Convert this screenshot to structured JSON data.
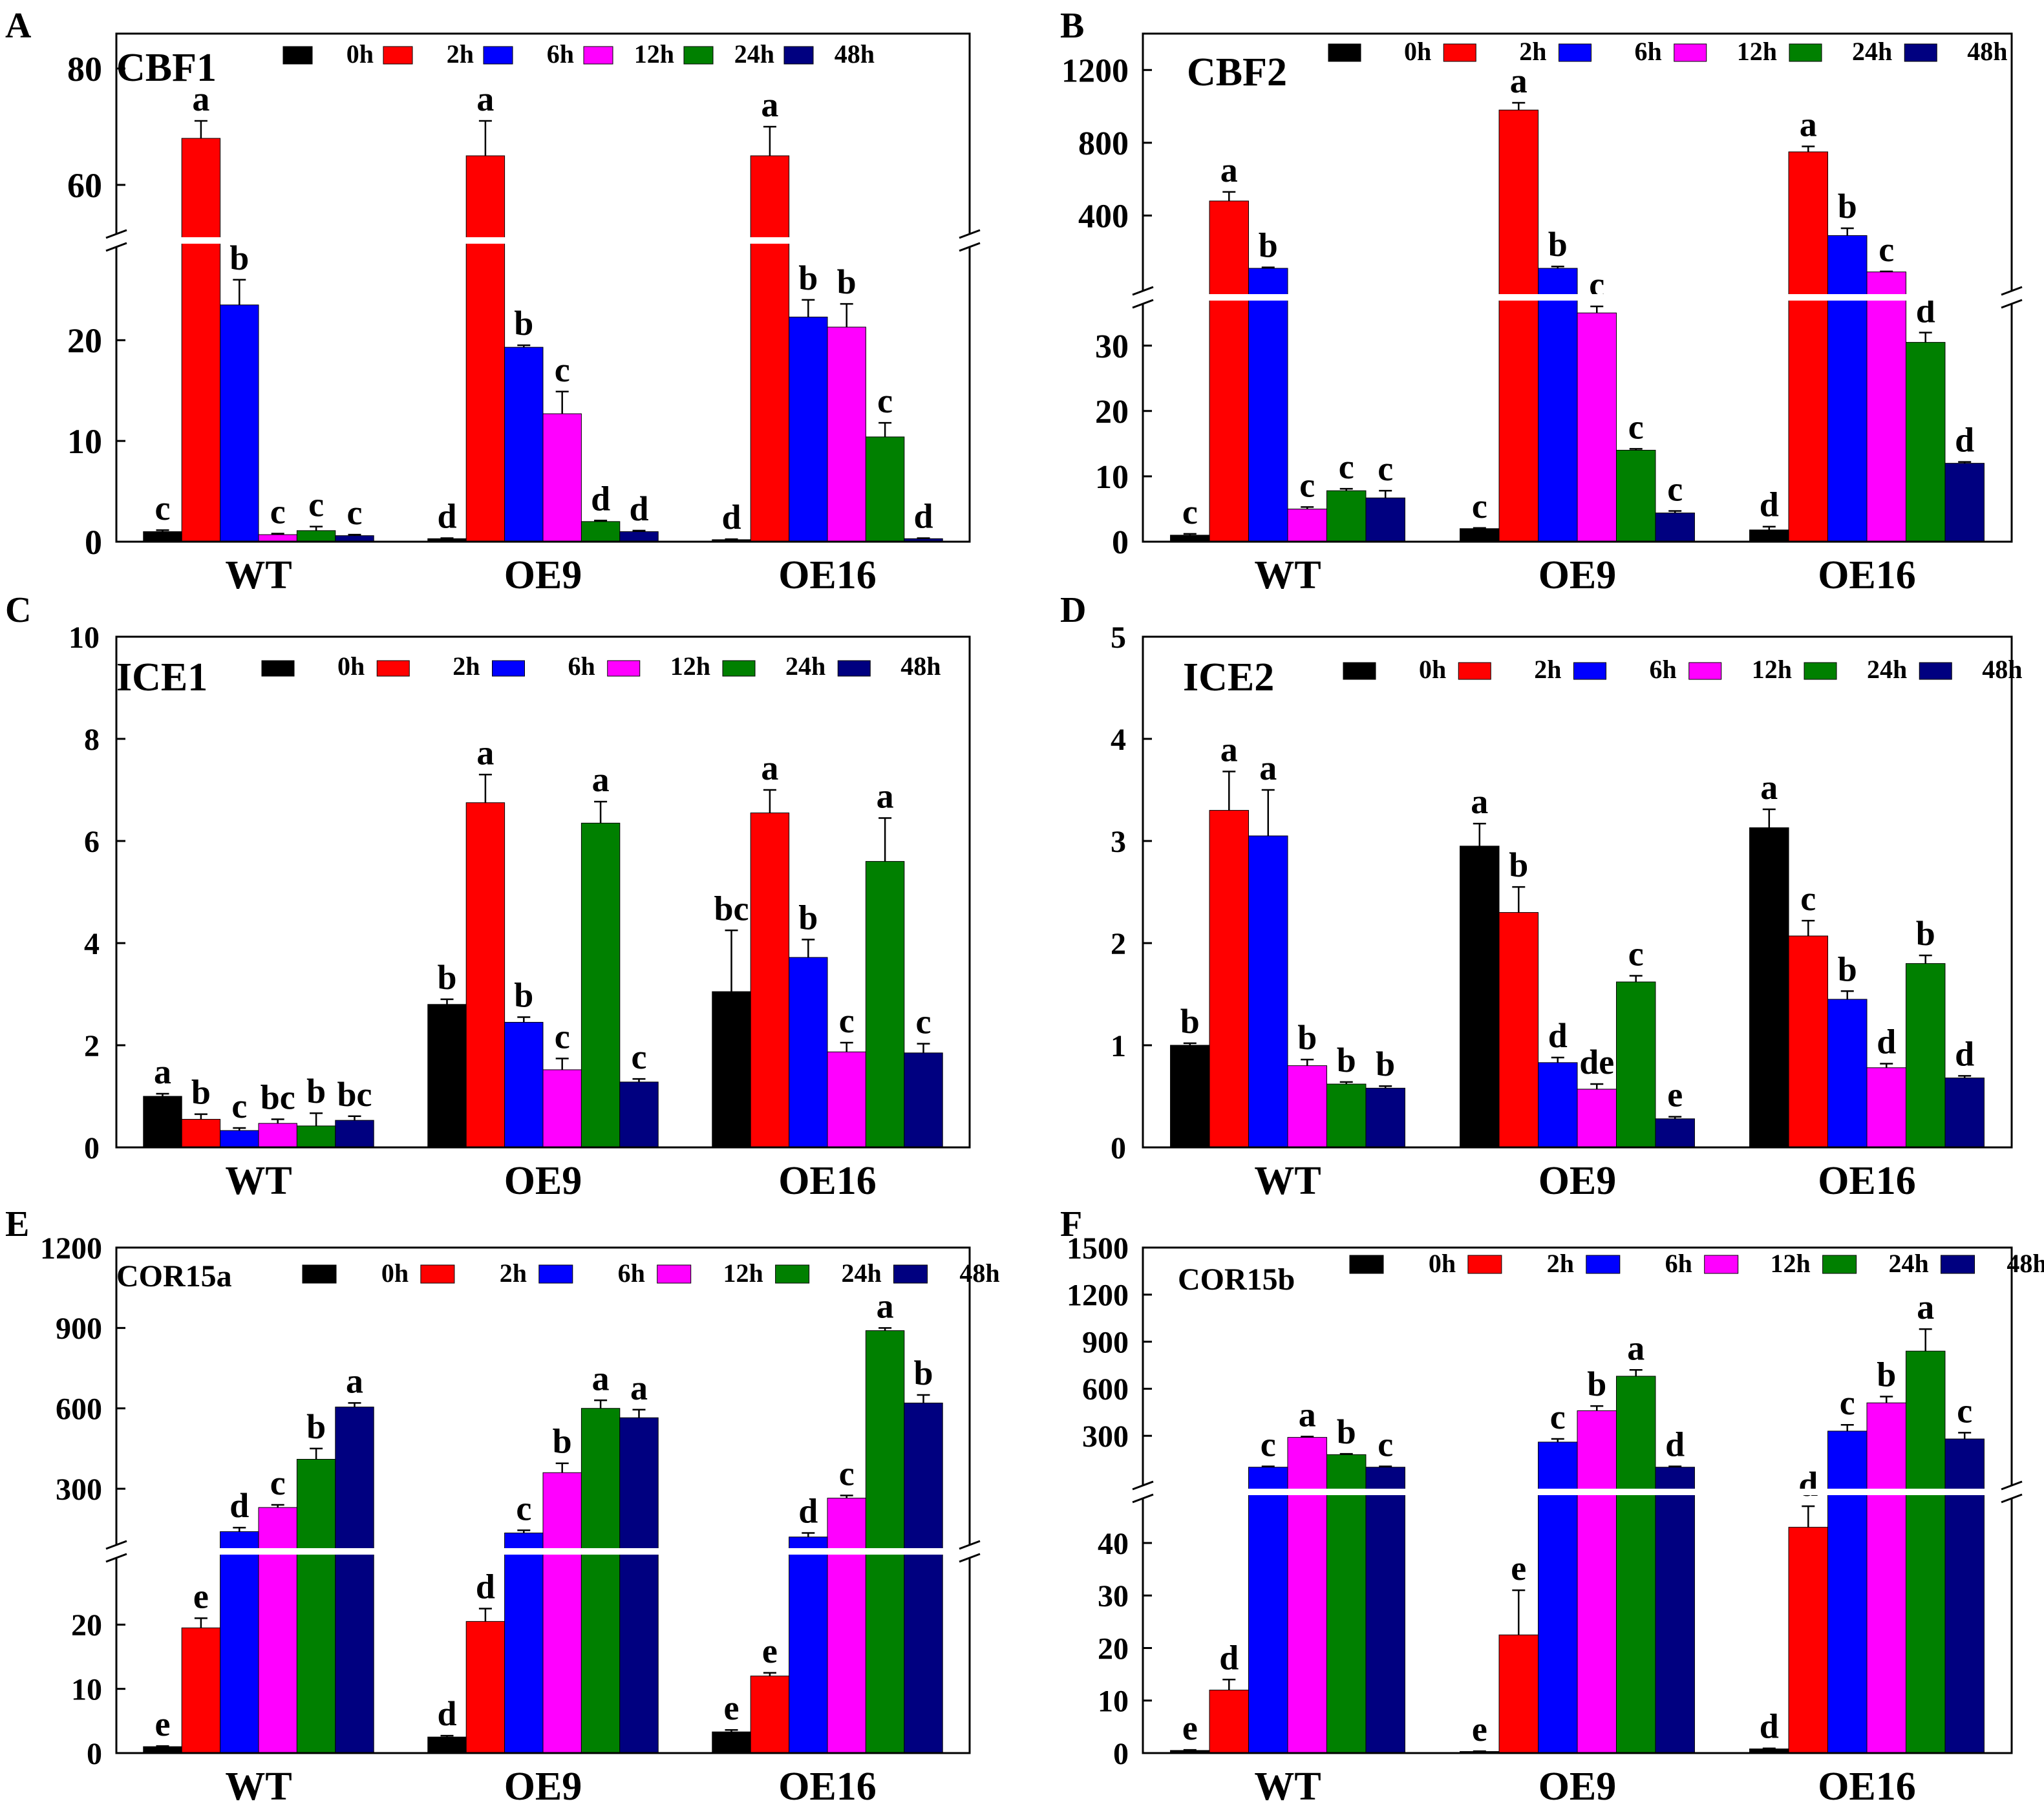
{
  "legend": {
    "times": [
      "0h",
      "2h",
      "6h",
      "12h",
      "24h",
      "48h"
    ],
    "colors": [
      "#000000",
      "#ff0000",
      "#0000ff",
      "#ff00ff",
      "#008000",
      "#000080"
    ]
  },
  "groups": [
    "WT",
    "OE9",
    "OE16"
  ],
  "chart_data": [
    {
      "panel": "A",
      "type": "bar",
      "title": "CBF1",
      "categories": [
        "WT",
        "OE9",
        "OE16"
      ],
      "series_names": [
        "0h",
        "2h",
        "6h",
        "12h",
        "24h",
        "48h"
      ],
      "axis_break": true,
      "lower_range": [
        0,
        29
      ],
      "lower_ticks": [
        0,
        10,
        20
      ],
      "upper_range": [
        52,
        86
      ],
      "upper_ticks": [
        60,
        80
      ],
      "values": [
        [
          1,
          68,
          23.5,
          0.7,
          1.1,
          0.6
        ],
        [
          0.3,
          65,
          19.3,
          12.7,
          2,
          1
        ],
        [
          0.2,
          65,
          22.3,
          21.3,
          10.4,
          0.3
        ]
      ],
      "errors": [
        [
          0.15,
          3,
          2.5,
          0.1,
          0.4,
          0.1
        ],
        [
          0.05,
          6,
          0.2,
          2.2,
          0.1,
          0.1
        ],
        [
          0.05,
          5,
          1.7,
          2.3,
          1.4,
          0.05
        ]
      ],
      "letters": [
        [
          "c",
          "a",
          "b",
          "c",
          "c",
          "c"
        ],
        [
          "d",
          "a",
          "b",
          "c",
          "d",
          "d"
        ],
        [
          "d",
          "a",
          "b",
          "b",
          "c",
          "d"
        ]
      ]
    },
    {
      "panel": "B",
      "type": "bar",
      "title": "CBF2",
      "categories": [
        "WT",
        "OE9",
        "OE16"
      ],
      "series_names": [
        "0h",
        "2h",
        "6h",
        "12h",
        "24h",
        "48h"
      ],
      "axis_break": true,
      "lower_range": [
        0,
        36
      ],
      "lower_ticks": [
        0,
        10,
        20,
        30
      ],
      "upper_range": [
        0,
        1400
      ],
      "upper_ticks": [
        400,
        800,
        1200
      ],
      "values": [
        [
          1,
          480,
          110,
          5,
          7.8,
          6.7
        ],
        [
          2,
          980,
          110,
          35,
          14,
          4.4
        ],
        [
          1.8,
          750,
          290,
          90,
          30.5,
          12
        ]
      ],
      "errors": [
        [
          0.2,
          50,
          5,
          0.3,
          0.3,
          1.1
        ],
        [
          0.1,
          40,
          10,
          1,
          0.2,
          0.3
        ],
        [
          0.5,
          30,
          40,
          3,
          1.5,
          0.2
        ]
      ],
      "letters": [
        [
          "c",
          "a",
          "b",
          "c",
          "c",
          "c"
        ],
        [
          "c",
          "a",
          "b",
          "c",
          "c",
          "c"
        ],
        [
          "d",
          "a",
          "b",
          "c",
          "d",
          "d"
        ]
      ]
    },
    {
      "panel": "C",
      "type": "bar",
      "title": "ICE1",
      "categories": [
        "WT",
        "OE9",
        "OE16"
      ],
      "series_names": [
        "0h",
        "2h",
        "6h",
        "12h",
        "24h",
        "48h"
      ],
      "axis_break": false,
      "ylim": [
        0,
        10
      ],
      "ticks": [
        0,
        2,
        4,
        6,
        8,
        10
      ],
      "values": [
        [
          1,
          0.55,
          0.33,
          0.47,
          0.42,
          0.53
        ],
        [
          2.8,
          6.75,
          2.45,
          1.52,
          6.35,
          1.28
        ],
        [
          3.05,
          6.55,
          3.72,
          1.87,
          5.6,
          1.85
        ]
      ],
      "errors": [
        [
          0.05,
          0.1,
          0.05,
          0.08,
          0.25,
          0.08
        ],
        [
          0.1,
          0.55,
          0.1,
          0.22,
          0.42,
          0.06
        ],
        [
          1.2,
          0.45,
          0.35,
          0.18,
          0.85,
          0.18
        ]
      ],
      "letters": [
        [
          "a",
          "b",
          "c",
          "bc",
          "b",
          "bc"
        ],
        [
          "b",
          "a",
          "b",
          "c",
          "a",
          "c"
        ],
        [
          "bc",
          "a",
          "b",
          "c",
          "a",
          "c"
        ]
      ]
    },
    {
      "panel": "D",
      "type": "bar",
      "title": "ICE2",
      "categories": [
        "WT",
        "OE9",
        "OE16"
      ],
      "series_names": [
        "0h",
        "2h",
        "6h",
        "12h",
        "24h",
        "48h"
      ],
      "axis_break": false,
      "ylim": [
        0,
        5
      ],
      "ticks": [
        0,
        1,
        2,
        3,
        4,
        5
      ],
      "values": [
        [
          1,
          3.3,
          3.05,
          0.8,
          0.62,
          0.58
        ],
        [
          2.95,
          2.3,
          0.83,
          0.57,
          1.62,
          0.28
        ],
        [
          3.13,
          2.07,
          1.45,
          0.78,
          1.8,
          0.68
        ]
      ],
      "errors": [
        [
          0.02,
          0.38,
          0.45,
          0.06,
          0.02,
          0.02
        ],
        [
          0.22,
          0.25,
          0.05,
          0.05,
          0.06,
          0.02
        ],
        [
          0.18,
          0.15,
          0.08,
          0.04,
          0.08,
          0.02
        ]
      ],
      "letters": [
        [
          "b",
          "a",
          "a",
          "b",
          "b",
          "b"
        ],
        [
          "a",
          "b",
          "d",
          "de",
          "c",
          "e"
        ],
        [
          "a",
          "c",
          "b",
          "d",
          "b",
          "d"
        ]
      ]
    },
    {
      "panel": "E",
      "type": "bar",
      "title": "COR15a",
      "categories": [
        "WT",
        "OE9",
        "OE16"
      ],
      "series_names": [
        "0h",
        "2h",
        "6h",
        "12h",
        "24h",
        "48h"
      ],
      "axis_break": true,
      "lower_range": [
        0,
        30
      ],
      "lower_ticks": [
        0,
        10,
        20
      ],
      "upper_range": [
        100,
        1200
      ],
      "upper_ticks": [
        300,
        600,
        900,
        1200
      ],
      "values": [
        [
          1,
          19.5,
          140,
          230,
          410,
          605
        ],
        [
          2.5,
          20.5,
          135,
          360,
          600,
          565
        ],
        [
          3.3,
          12,
          120,
          265,
          890,
          620
        ]
      ],
      "errors": [
        [
          0.1,
          1.5,
          15,
          10,
          40,
          15
        ],
        [
          0.2,
          2,
          10,
          35,
          30,
          30
        ],
        [
          0.3,
          0.5,
          15,
          10,
          10,
          30
        ]
      ],
      "letters": [
        [
          "e",
          "e",
          "d",
          "c",
          "b",
          "a"
        ],
        [
          "d",
          "d",
          "c",
          "b",
          "a",
          "a"
        ],
        [
          "e",
          "e",
          "d",
          "c",
          "a",
          "b"
        ]
      ]
    },
    {
      "panel": "F",
      "type": "bar",
      "title": "COR15b",
      "categories": [
        "WT",
        "OE9",
        "OE16"
      ],
      "series_names": [
        "0h",
        "2h",
        "6h",
        "12h",
        "24h",
        "48h"
      ],
      "axis_break": true,
      "lower_range": [
        0,
        48
      ],
      "lower_ticks": [
        0,
        10,
        20,
        30,
        40
      ],
      "upper_range": [
        0,
        1500
      ],
      "upper_ticks": [
        300,
        600,
        900,
        1200,
        1500
      ],
      "values": [
        [
          0.5,
          12,
          100,
          290,
          180,
          100
        ],
        [
          0.3,
          22.5,
          260,
          460,
          680,
          100
        ],
        [
          0.8,
          43,
          330,
          510,
          840,
          280
        ]
      ],
      "errors": [
        [
          0.1,
          2,
          5,
          5,
          5,
          5
        ],
        [
          0.05,
          8.5,
          20,
          30,
          40,
          5
        ],
        [
          0.1,
          4,
          40,
          40,
          140,
          40
        ]
      ],
      "letters": [
        [
          "e",
          "d",
          "c",
          "a",
          "b",
          "c"
        ],
        [
          "e",
          "e",
          "c",
          "b",
          "a",
          "d"
        ],
        [
          "d",
          "d",
          "c",
          "b",
          "a",
          "c"
        ]
      ]
    }
  ]
}
